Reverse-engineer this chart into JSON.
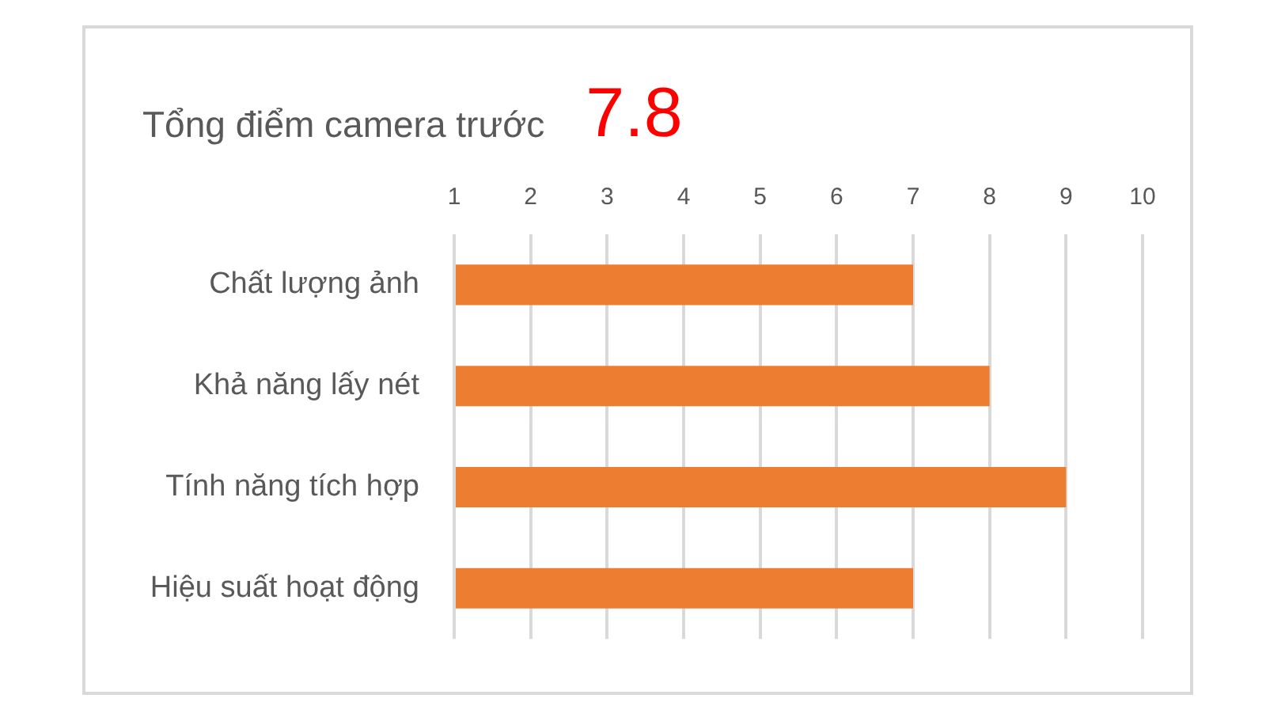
{
  "chart_data": {
    "type": "bar",
    "orientation": "horizontal",
    "title": "Tổng điểm camera trước",
    "annotations": [
      "7.8"
    ],
    "categories": [
      "Chất lượng ảnh",
      "Khả năng lấy nét",
      "Tính năng tích hợp",
      "Hiệu suất hoạt động"
    ],
    "values": [
      7,
      8,
      9,
      7
    ],
    "color": "#ed7d31",
    "xlim": [
      1,
      10
    ],
    "xticks": [
      1,
      2,
      3,
      4,
      5,
      6,
      7,
      8,
      9,
      10
    ],
    "grid": "x"
  }
}
